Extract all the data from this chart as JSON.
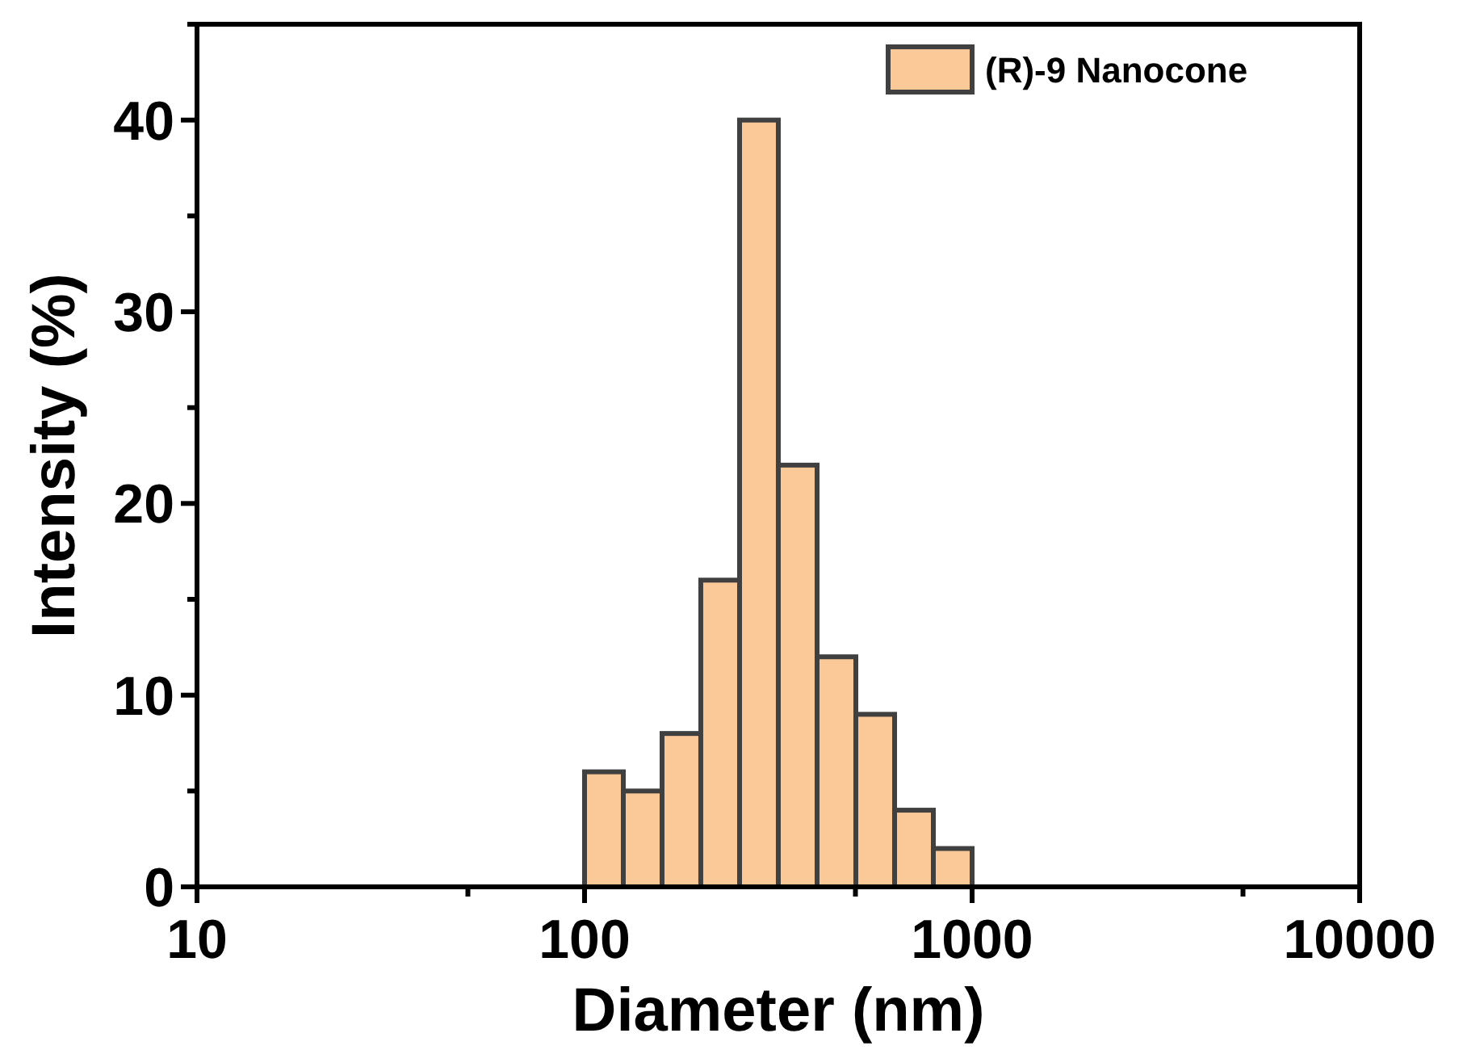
{
  "chart_data": {
    "type": "histogram",
    "xlabel": "Diameter (nm)",
    "ylabel": "Intensity (%)",
    "bins": [
      100,
      125.9,
      158.5,
      199.5,
      251.2,
      316.2,
      398.1,
      501.2,
      631,
      794.3,
      1000
    ],
    "series": [
      {
        "name": "(R)-9 Nanocone",
        "color": "#fbc898",
        "values": [
          6,
          5,
          8,
          16,
          40,
          22,
          12,
          9,
          4,
          2
        ]
      }
    ],
    "log": "x",
    "xlim": [
      10,
      10000
    ],
    "xticks": [
      10,
      {
        "value": 50,
        "label": null
      },
      100,
      {
        "value": 500,
        "label": null
      },
      1000,
      {
        "value": 5000,
        "label": null
      },
      10000
    ],
    "ylim": [
      0,
      45
    ],
    "yticks": [
      0,
      {
        "value": 5,
        "label": null
      },
      10,
      {
        "value": 15,
        "label": null
      },
      20,
      {
        "value": 25,
        "label": null
      },
      30,
      {
        "value": 35,
        "label": null
      },
      40,
      {
        "value": 45,
        "label": null
      }
    ],
    "grid": false,
    "legend": "top right"
  }
}
